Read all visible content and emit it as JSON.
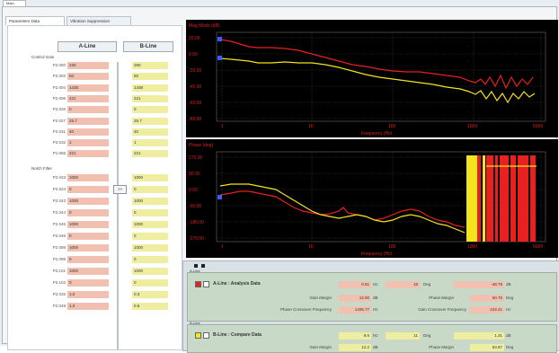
{
  "top_tab": {
    "label": "Main"
  },
  "tabs": [
    {
      "label": "Parameters Data"
    },
    {
      "label": "Vibration Suppression"
    }
  ],
  "columns": {
    "a": "A-Line",
    "b": "B-Line"
  },
  "control_gain": {
    "label": "Control Gain",
    "rows": [
      {
        "name": "P2.000",
        "a": "230",
        "b": "250"
      },
      {
        "name": "P2.002",
        "a": "50",
        "b": "50"
      },
      {
        "name": "P2.004",
        "a": "1438",
        "b": "1438"
      },
      {
        "name": "P2.006",
        "a": "221",
        "b": "221"
      },
      {
        "name": "P2.026",
        "a": "0",
        "b": "0"
      },
      {
        "name": "P2.027",
        "a": "25.7",
        "b": "25.7"
      },
      {
        "name": "P2.031",
        "a": "40",
        "b": "40"
      },
      {
        "name": "P2.032",
        "a": "1",
        "b": "1"
      },
      {
        "name": "P1.068",
        "a": "221",
        "b": "221"
      }
    ]
  },
  "notch_filter": {
    "label": "Notch Filter",
    "rows": [
      {
        "name": "P2.023",
        "a": "1000",
        "b": "1000"
      },
      {
        "name": "P2.024",
        "a": "0",
        "b": "0"
      },
      {
        "name": "P2.043",
        "a": "1000",
        "b": "1000"
      },
      {
        "name": "P2.044",
        "a": "0",
        "b": "0"
      },
      {
        "name": "P2.045",
        "a": "1000",
        "b": "1000"
      },
      {
        "name": "P2.046",
        "a": "0",
        "b": "0"
      },
      {
        "name": "P2.098",
        "a": "1000",
        "b": "1000"
      },
      {
        "name": "P2.099",
        "a": "0",
        "b": "0"
      },
      {
        "name": "P2.101",
        "a": "1000",
        "b": "1000"
      },
      {
        "name": "P2.102",
        "a": "0",
        "b": "0"
      },
      {
        "name": "P2.025",
        "a": "1.0",
        "b": "0.3"
      },
      {
        "name": "P2.049",
        "a": "1.0",
        "b": "0.6"
      }
    ]
  },
  "copy_button": {
    "label": ">>"
  },
  "plot1": {
    "title": "Mag Mode (dB)",
    "yticks": [
      "20.00",
      "0.00",
      "-20.00",
      "-40.00",
      "-60.00",
      "-80.00"
    ],
    "xticks": [
      "1",
      "10",
      "100",
      "1000",
      "5000"
    ],
    "xlabel": "Frequency (Hz)"
  },
  "plot2": {
    "title": "Phase (deg)",
    "yticks": [
      "270.00",
      "90.00",
      "0.00",
      "-90.00",
      "-180.00",
      "-270.00"
    ],
    "xticks": [
      "1",
      "10",
      "100",
      "1000",
      "5000"
    ],
    "xlabel": "Frequency (Hz)"
  },
  "analysis": {
    "a_group": {
      "frame_label": "A-Line",
      "title": "A-Line : Analysis Data",
      "color": "#e82020",
      "peak": "0.51",
      "peak_unit": "Hz",
      "peak2": "18",
      "deg_label": "Deg",
      "peak3": "-48.75",
      "db_label": "dB",
      "gain_margin_label": "Gain Margin",
      "gain_margin": "12.00",
      "gain_margin_unit": "dB",
      "phase_margin_label": "Phase Margin",
      "phase_margin": "50.76",
      "phase_margin_unit": "Deg",
      "pcf_label": "Phase Crossover Frequency",
      "pcf": "1406.77",
      "pcf_unit": "Hz",
      "gcf_label": "Gain Crossover Frequency",
      "gcf": "243.41",
      "gcf_unit": "Hz"
    },
    "b_group": {
      "frame_label": "B-Line",
      "title": "B-Line : Compare Data",
      "color": "#f4e41c",
      "peak": "8.6",
      "peak_unit": "Hz",
      "peak2": "11",
      "deg_label": "Deg",
      "peak3": "1.31",
      "db_label": "dB",
      "gain_margin_label": "Gain Margin",
      "gain_margin": "12.2",
      "gain_margin_unit": "dB",
      "phase_margin_label": "Phase Margin",
      "phase_margin": "53.87",
      "phase_margin_unit": "Deg"
    }
  },
  "colors": {
    "a_line": "#e82020",
    "b_line": "#f4e41c",
    "plot_bg": "#000000"
  }
}
